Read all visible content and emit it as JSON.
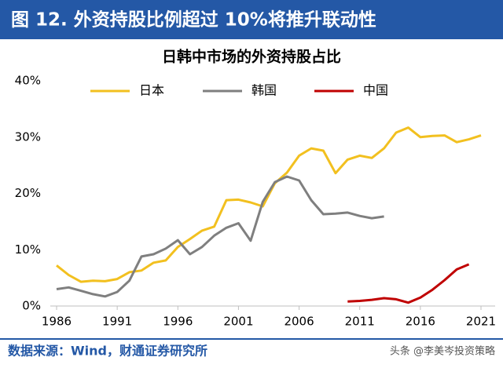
{
  "header": {
    "title": "图 12. 外资持股比例超过 10%将推升联动性"
  },
  "chart_data": {
    "type": "line",
    "title": "日韩中市场的外资持股占比",
    "x": [
      1986,
      1987,
      1988,
      1989,
      1990,
      1991,
      1992,
      1993,
      1994,
      1995,
      1996,
      1997,
      1998,
      1999,
      2000,
      2001,
      2002,
      2003,
      2004,
      2005,
      2006,
      2007,
      2008,
      2009,
      2010,
      2011,
      2012,
      2013,
      2014,
      2015,
      2016,
      2017,
      2018,
      2019,
      2020,
      2021
    ],
    "series": [
      {
        "name": "日本",
        "color": "#f2c01f",
        "values": [
          7.2,
          5.5,
          4.3,
          4.5,
          4.4,
          4.8,
          6.0,
          6.3,
          7.7,
          8.1,
          10.5,
          11.9,
          13.4,
          14.1,
          18.8,
          18.9,
          18.4,
          17.7,
          21.8,
          23.7,
          26.7,
          28.0,
          27.6,
          23.6,
          26.0,
          26.7,
          26.3,
          28.0,
          30.8,
          31.7,
          30.0,
          30.2,
          30.3,
          29.1,
          29.6,
          30.3
        ]
      },
      {
        "name": "韩国",
        "color": "#7f7f7f",
        "values": [
          3.0,
          3.3,
          2.7,
          2.1,
          1.7,
          2.5,
          4.5,
          8.8,
          9.2,
          10.2,
          11.7,
          9.2,
          10.5,
          12.5,
          13.9,
          14.7,
          11.6,
          18.5,
          22.0,
          23.0,
          22.3,
          18.8,
          16.3,
          16.4,
          16.6,
          16.0,
          15.6,
          15.9,
          null,
          null,
          null,
          null,
          null,
          null,
          null,
          null
        ]
      },
      {
        "name": "中国",
        "color": "#c00000",
        "values": [
          null,
          null,
          null,
          null,
          null,
          null,
          null,
          null,
          null,
          null,
          null,
          null,
          null,
          null,
          null,
          null,
          null,
          null,
          null,
          null,
          null,
          null,
          null,
          null,
          0.8,
          0.9,
          1.1,
          1.4,
          1.2,
          0.6,
          1.5,
          2.9,
          4.6,
          6.5,
          7.4,
          null
        ]
      }
    ],
    "xlim": [
      1986,
      2021
    ],
    "xticks": [
      1986,
      1991,
      1996,
      2001,
      2006,
      2011,
      2016,
      2021
    ],
    "ylim": [
      0,
      40
    ],
    "yticks": [
      {
        "value": 0,
        "label": "0%"
      },
      {
        "value": 10,
        "label": "10%"
      },
      {
        "value": 20,
        "label": "20%"
      },
      {
        "value": 30,
        "label": "30%"
      },
      {
        "value": 40,
        "label": "40%"
      }
    ],
    "legend": "top",
    "grid": false
  },
  "footer": {
    "source": "数据来源：Wind，财通证券研究所",
    "watermark": "头条 @李美岑投资策略"
  }
}
